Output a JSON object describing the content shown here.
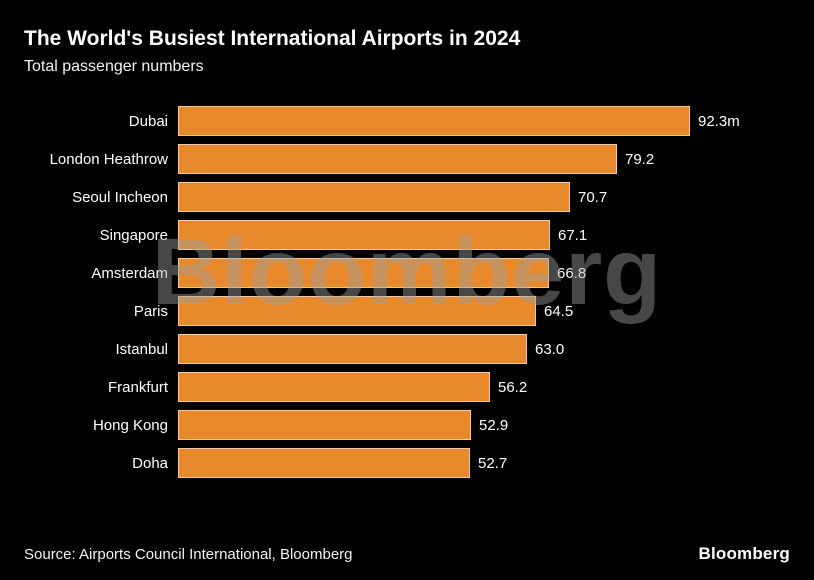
{
  "title": "The World's Busiest International Airports in 2024",
  "subtitle": "Total passenger numbers",
  "source": "Source: Airports Council International, Bloomberg",
  "brand": "Bloomberg",
  "watermark": "Bloomberg",
  "colors": {
    "background": "#000000",
    "bar": "#e8892b",
    "text": "#ffffff",
    "watermark": "rgba(158,158,158,0.45)"
  },
  "chart_data": {
    "type": "bar",
    "orientation": "horizontal",
    "title": "The World's Busiest International Airports in 2024",
    "subtitle": "Total passenger numbers",
    "xlabel": "",
    "ylabel": "",
    "xlim": [
      0,
      100
    ],
    "grid": false,
    "legend": false,
    "unit": "million passengers",
    "categories": [
      "Dubai",
      "London Heathrow",
      "Seoul Incheon",
      "Singapore",
      "Amsterdam",
      "Paris",
      "Istanbul",
      "Frankfurt",
      "Hong Kong",
      "Doha"
    ],
    "values": [
      92.3,
      79.2,
      70.7,
      67.1,
      66.8,
      64.5,
      63.0,
      56.2,
      52.9,
      52.7
    ],
    "value_labels": [
      "92.3m",
      "79.2",
      "70.7",
      "67.1",
      "66.8",
      "64.5",
      "63.0",
      "56.2",
      "52.9",
      "52.7"
    ]
  }
}
